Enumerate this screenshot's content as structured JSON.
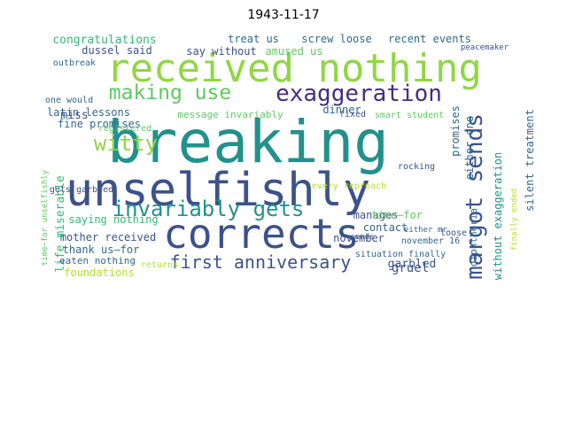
{
  "title": "1943-11-17",
  "words": [
    {
      "text": "received nothing",
      "color": "#90d743"
    },
    {
      "text": "breaking",
      "color": "#21918c"
    },
    {
      "text": "unselfishly",
      "color": "#3b528b"
    },
    {
      "text": "corrects",
      "color": "#3b528b"
    },
    {
      "text": "exaggeration",
      "color": "#472d7b"
    },
    {
      "text": "making use",
      "color": "#5ec962"
    },
    {
      "text": "invariably gets",
      "color": "#21918c"
    },
    {
      "text": "margot sends",
      "color": "#3b528b"
    },
    {
      "text": "witty",
      "color": "#90d743"
    },
    {
      "text": "first anniversary",
      "color": "#3b528b"
    },
    {
      "text": "congratulations",
      "color": "#35b779"
    },
    {
      "text": "screw loose",
      "color": "#31688e"
    },
    {
      "text": "recent events",
      "color": "#31688e"
    },
    {
      "text": "dussel said",
      "color": "#3b528b"
    },
    {
      "text": "treat us",
      "color": "#31688e"
    },
    {
      "text": "say without",
      "color": "#3b528b"
    },
    {
      "text": "amused us",
      "color": "#5ec962"
    },
    {
      "text": "miss",
      "color": "#3b528b"
    },
    {
      "text": "latin lessons",
      "color": "#31688e"
    },
    {
      "text": "message invariably",
      "color": "#5ec962"
    },
    {
      "text": "dinner",
      "color": "#31688e"
    },
    {
      "text": "fine promises",
      "color": "#31688e"
    },
    {
      "text": "life miserable",
      "color": "#35b779"
    },
    {
      "text": "mother received",
      "color": "#3b528b"
    },
    {
      "text": "thank us—for",
      "color": "#31688e"
    },
    {
      "text": "eaten nothing",
      "color": "#31688e"
    },
    {
      "text": "foundations",
      "color": "#b5de2b"
    },
    {
      "text": "saying nothing",
      "color": "#35b779"
    },
    {
      "text": "gruel",
      "color": "#3b528b"
    },
    {
      "text": "garbled",
      "color": "#3b528b"
    },
    {
      "text": "manages",
      "color": "#3b528b"
    },
    {
      "text": "contact",
      "color": "#31688e"
    },
    {
      "text": "time—for",
      "color": "#5ec962"
    },
    {
      "text": "november",
      "color": "#3b528b"
    },
    {
      "text": "either one",
      "color": "#31688e"
    },
    {
      "text": "promises",
      "color": "#31688e"
    },
    {
      "text": "without exaggeration",
      "color": "#21918c"
    },
    {
      "text": "silent treatment",
      "color": "#31688e"
    },
    {
      "text": "diphtheria",
      "color": "#31688e"
    },
    {
      "text": "peacemaker",
      "color": "#3b528b"
    },
    {
      "text": "gets garbled",
      "color": "#3b528b"
    },
    {
      "text": "every reproach",
      "color": "#b5de2b"
    },
    {
      "text": "situation finally",
      "color": "#31688e"
    },
    {
      "text": "loose",
      "color": "#3b528b"
    },
    {
      "text": "november 16",
      "color": "#31688e"
    },
    {
      "text": "smart student",
      "color": "#5ec962"
    },
    {
      "text": "fixed",
      "color": "#3b528b"
    },
    {
      "text": "one would",
      "color": "#31688e"
    },
    {
      "text": "outbreak",
      "color": "#31688e"
    },
    {
      "text": "registered",
      "color": "#5ec962"
    },
    {
      "text": "rocking",
      "color": "#3b528b"
    },
    {
      "text": "sends",
      "color": "#3b528b"
    },
    {
      "text": "either mr.",
      "color": "#31688e"
    },
    {
      "text": "returns",
      "color": "#b5de2b"
    },
    {
      "text": "time—for unselfishly",
      "color": "#5ec962"
    },
    {
      "text": "finally ended",
      "color": "#b5de2b"
    }
  ]
}
